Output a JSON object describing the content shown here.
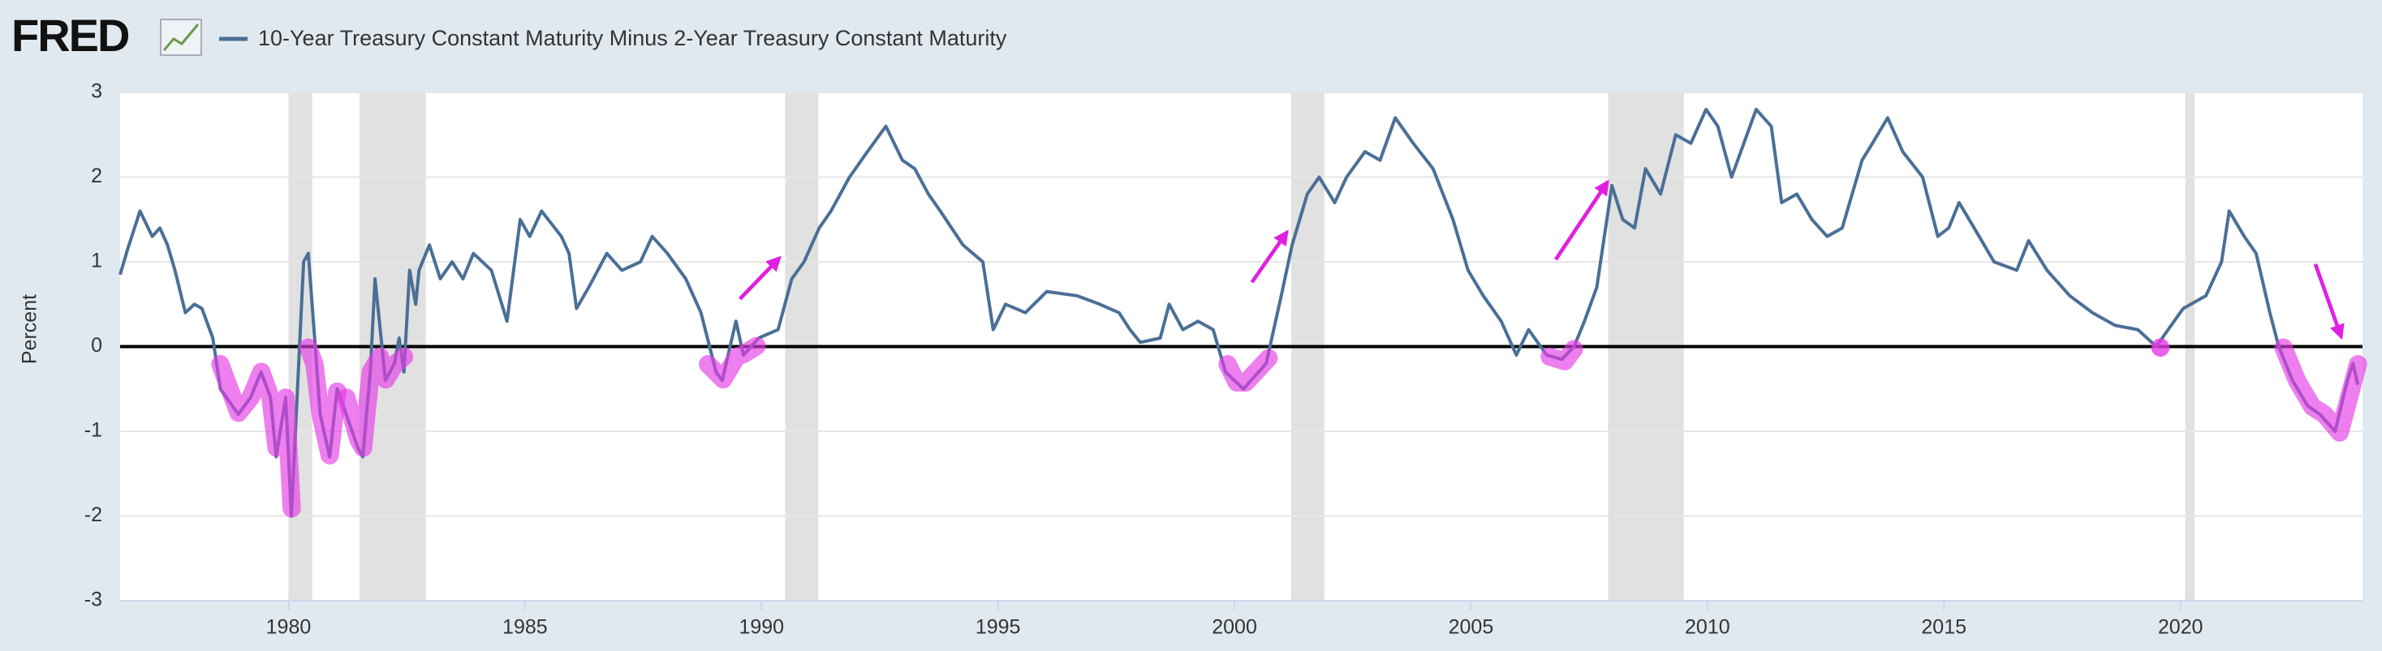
{
  "logo": "FRED",
  "chart_data": {
    "type": "line",
    "y_label": "Percent",
    "x": [
      1976.44,
      1976.6,
      1976.86,
      1977.12,
      1977.28,
      1977.44,
      1977.6,
      1977.82,
      1978.01,
      1978.17,
      1978.4,
      1978.56,
      1978.94,
      1979.2,
      1979.42,
      1979.62,
      1979.74,
      1979.94,
      1980.06,
      1980.32,
      1980.42,
      1980.54,
      1980.67,
      1980.87,
      1981.03,
      1981.22,
      1981.47,
      1981.57,
      1981.73,
      1981.83,
      1982.05,
      1982.24,
      1982.34,
      1982.44,
      1982.56,
      1982.69,
      1982.76,
      1982.98,
      1983.21,
      1983.46,
      1983.69,
      1983.91,
      1984.29,
      1984.62,
      1984.9,
      1985.1,
      1985.35,
      1985.77,
      1985.93,
      1986.09,
      1986.35,
      1986.73,
      1987.05,
      1987.44,
      1987.69,
      1988.01,
      1988.4,
      1988.72,
      1989.04,
      1989.17,
      1989.46,
      1989.62,
      1989.94,
      1990.35,
      1990.64,
      1990.9,
      1991.22,
      1991.47,
      1991.86,
      1992.24,
      1992.63,
      1992.98,
      1993.24,
      1993.53,
      1993.78,
      1994.26,
      1994.68,
      1994.9,
      1995.16,
      1995.58,
      1996.03,
      1996.67,
      1997.15,
      1997.56,
      1997.79,
      1998.01,
      1998.43,
      1998.62,
      1998.91,
      1999.23,
      1999.55,
      1999.81,
      2000.19,
      2000.67,
      2000.99,
      2001.22,
      2001.54,
      2001.79,
      2002.12,
      2002.37,
      2002.76,
      2003.08,
      2003.4,
      2003.78,
      2004.2,
      2004.62,
      2004.94,
      2005.26,
      2005.64,
      2005.96,
      2006.22,
      2006.6,
      2006.92,
      2007.18,
      2007.4,
      2007.66,
      2007.98,
      2008.21,
      2008.46,
      2008.69,
      2009.01,
      2009.33,
      2009.65,
      2009.97,
      2010.22,
      2010.51,
      2010.77,
      2011.03,
      2011.35,
      2011.57,
      2011.89,
      2012.21,
      2012.53,
      2012.85,
      2013.27,
      2013.49,
      2013.81,
      2014.13,
      2014.55,
      2014.87,
      2015.1,
      2015.32,
      2015.64,
      2016.06,
      2016.54,
      2016.79,
      2017.18,
      2017.66,
      2018.14,
      2018.62,
      2019.1,
      2019.49,
      2019.74,
      2020.06,
      2020.54,
      2020.87,
      2021.03,
      2021.35,
      2021.6,
      2021.89,
      2022.08,
      2022.37,
      2022.69,
      2022.95,
      2023.27,
      2023.53,
      2023.65,
      2023.75
    ],
    "series": [
      {
        "name": "10-Year Treasury Constant Maturity Minus 2-Year Treasury Constant Maturity",
        "color": "#4b6f96",
        "values": [
          0.85,
          1.15,
          1.6,
          1.3,
          1.4,
          1.2,
          0.9,
          0.4,
          0.5,
          0.45,
          0.1,
          -0.5,
          -0.8,
          -0.6,
          -0.3,
          -0.6,
          -1.3,
          -0.6,
          -2.0,
          1.0,
          1.1,
          0.2,
          -0.8,
          -1.3,
          -0.5,
          -0.8,
          -1.2,
          -1.3,
          -0.3,
          0.8,
          -0.4,
          -0.2,
          0.1,
          -0.3,
          0.9,
          0.5,
          0.9,
          1.2,
          0.8,
          1.0,
          0.8,
          1.1,
          0.9,
          0.3,
          1.5,
          1.3,
          1.6,
          1.3,
          1.1,
          0.45,
          0.7,
          1.1,
          0.9,
          1.0,
          1.3,
          1.1,
          0.8,
          0.4,
          -0.3,
          -0.4,
          0.3,
          -0.1,
          0.1,
          0.2,
          0.8,
          1.0,
          1.4,
          1.6,
          2.0,
          2.3,
          2.6,
          2.2,
          2.1,
          1.8,
          1.6,
          1.2,
          1.0,
          0.2,
          0.5,
          0.4,
          0.65,
          0.6,
          0.5,
          0.4,
          0.2,
          0.05,
          0.1,
          0.5,
          0.2,
          0.3,
          0.2,
          -0.3,
          -0.5,
          -0.2,
          0.6,
          1.2,
          1.8,
          2.0,
          1.7,
          2.0,
          2.3,
          2.2,
          2.7,
          2.4,
          2.1,
          1.5,
          0.9,
          0.6,
          0.3,
          -0.1,
          0.2,
          -0.1,
          -0.15,
          0.0,
          0.3,
          0.7,
          1.9,
          1.5,
          1.4,
          2.1,
          1.8,
          2.5,
          2.4,
          2.8,
          2.6,
          2.0,
          2.4,
          2.8,
          2.6,
          1.7,
          1.8,
          1.5,
          1.3,
          1.4,
          2.2,
          2.4,
          2.7,
          2.3,
          2.0,
          1.3,
          1.4,
          1.7,
          1.4,
          1.0,
          0.9,
          1.25,
          0.9,
          0.6,
          0.4,
          0.25,
          0.2,
          0.0,
          0.2,
          0.45,
          0.6,
          1.0,
          1.6,
          1.3,
          1.1,
          0.4,
          0.0,
          -0.4,
          -0.7,
          -0.8,
          -1.0,
          -0.4,
          -0.2,
          -0.45
        ]
      }
    ],
    "recessions": [
      [
        1980.0,
        1980.5
      ],
      [
        1981.5,
        1982.9
      ],
      [
        1990.5,
        1991.2
      ],
      [
        2001.2,
        2001.9
      ],
      [
        2007.9,
        2009.5
      ],
      [
        2020.1,
        2020.3
      ]
    ],
    "xlim": [
      1976.44,
      2023.85
    ],
    "xticks": [
      1980,
      1985,
      1990,
      1995,
      2000,
      2005,
      2010,
      2015,
      2020
    ],
    "ylim": [
      -3,
      3
    ],
    "yticks": [
      -3,
      -2,
      -1,
      0,
      1,
      2,
      3
    ],
    "grid": true
  }
}
